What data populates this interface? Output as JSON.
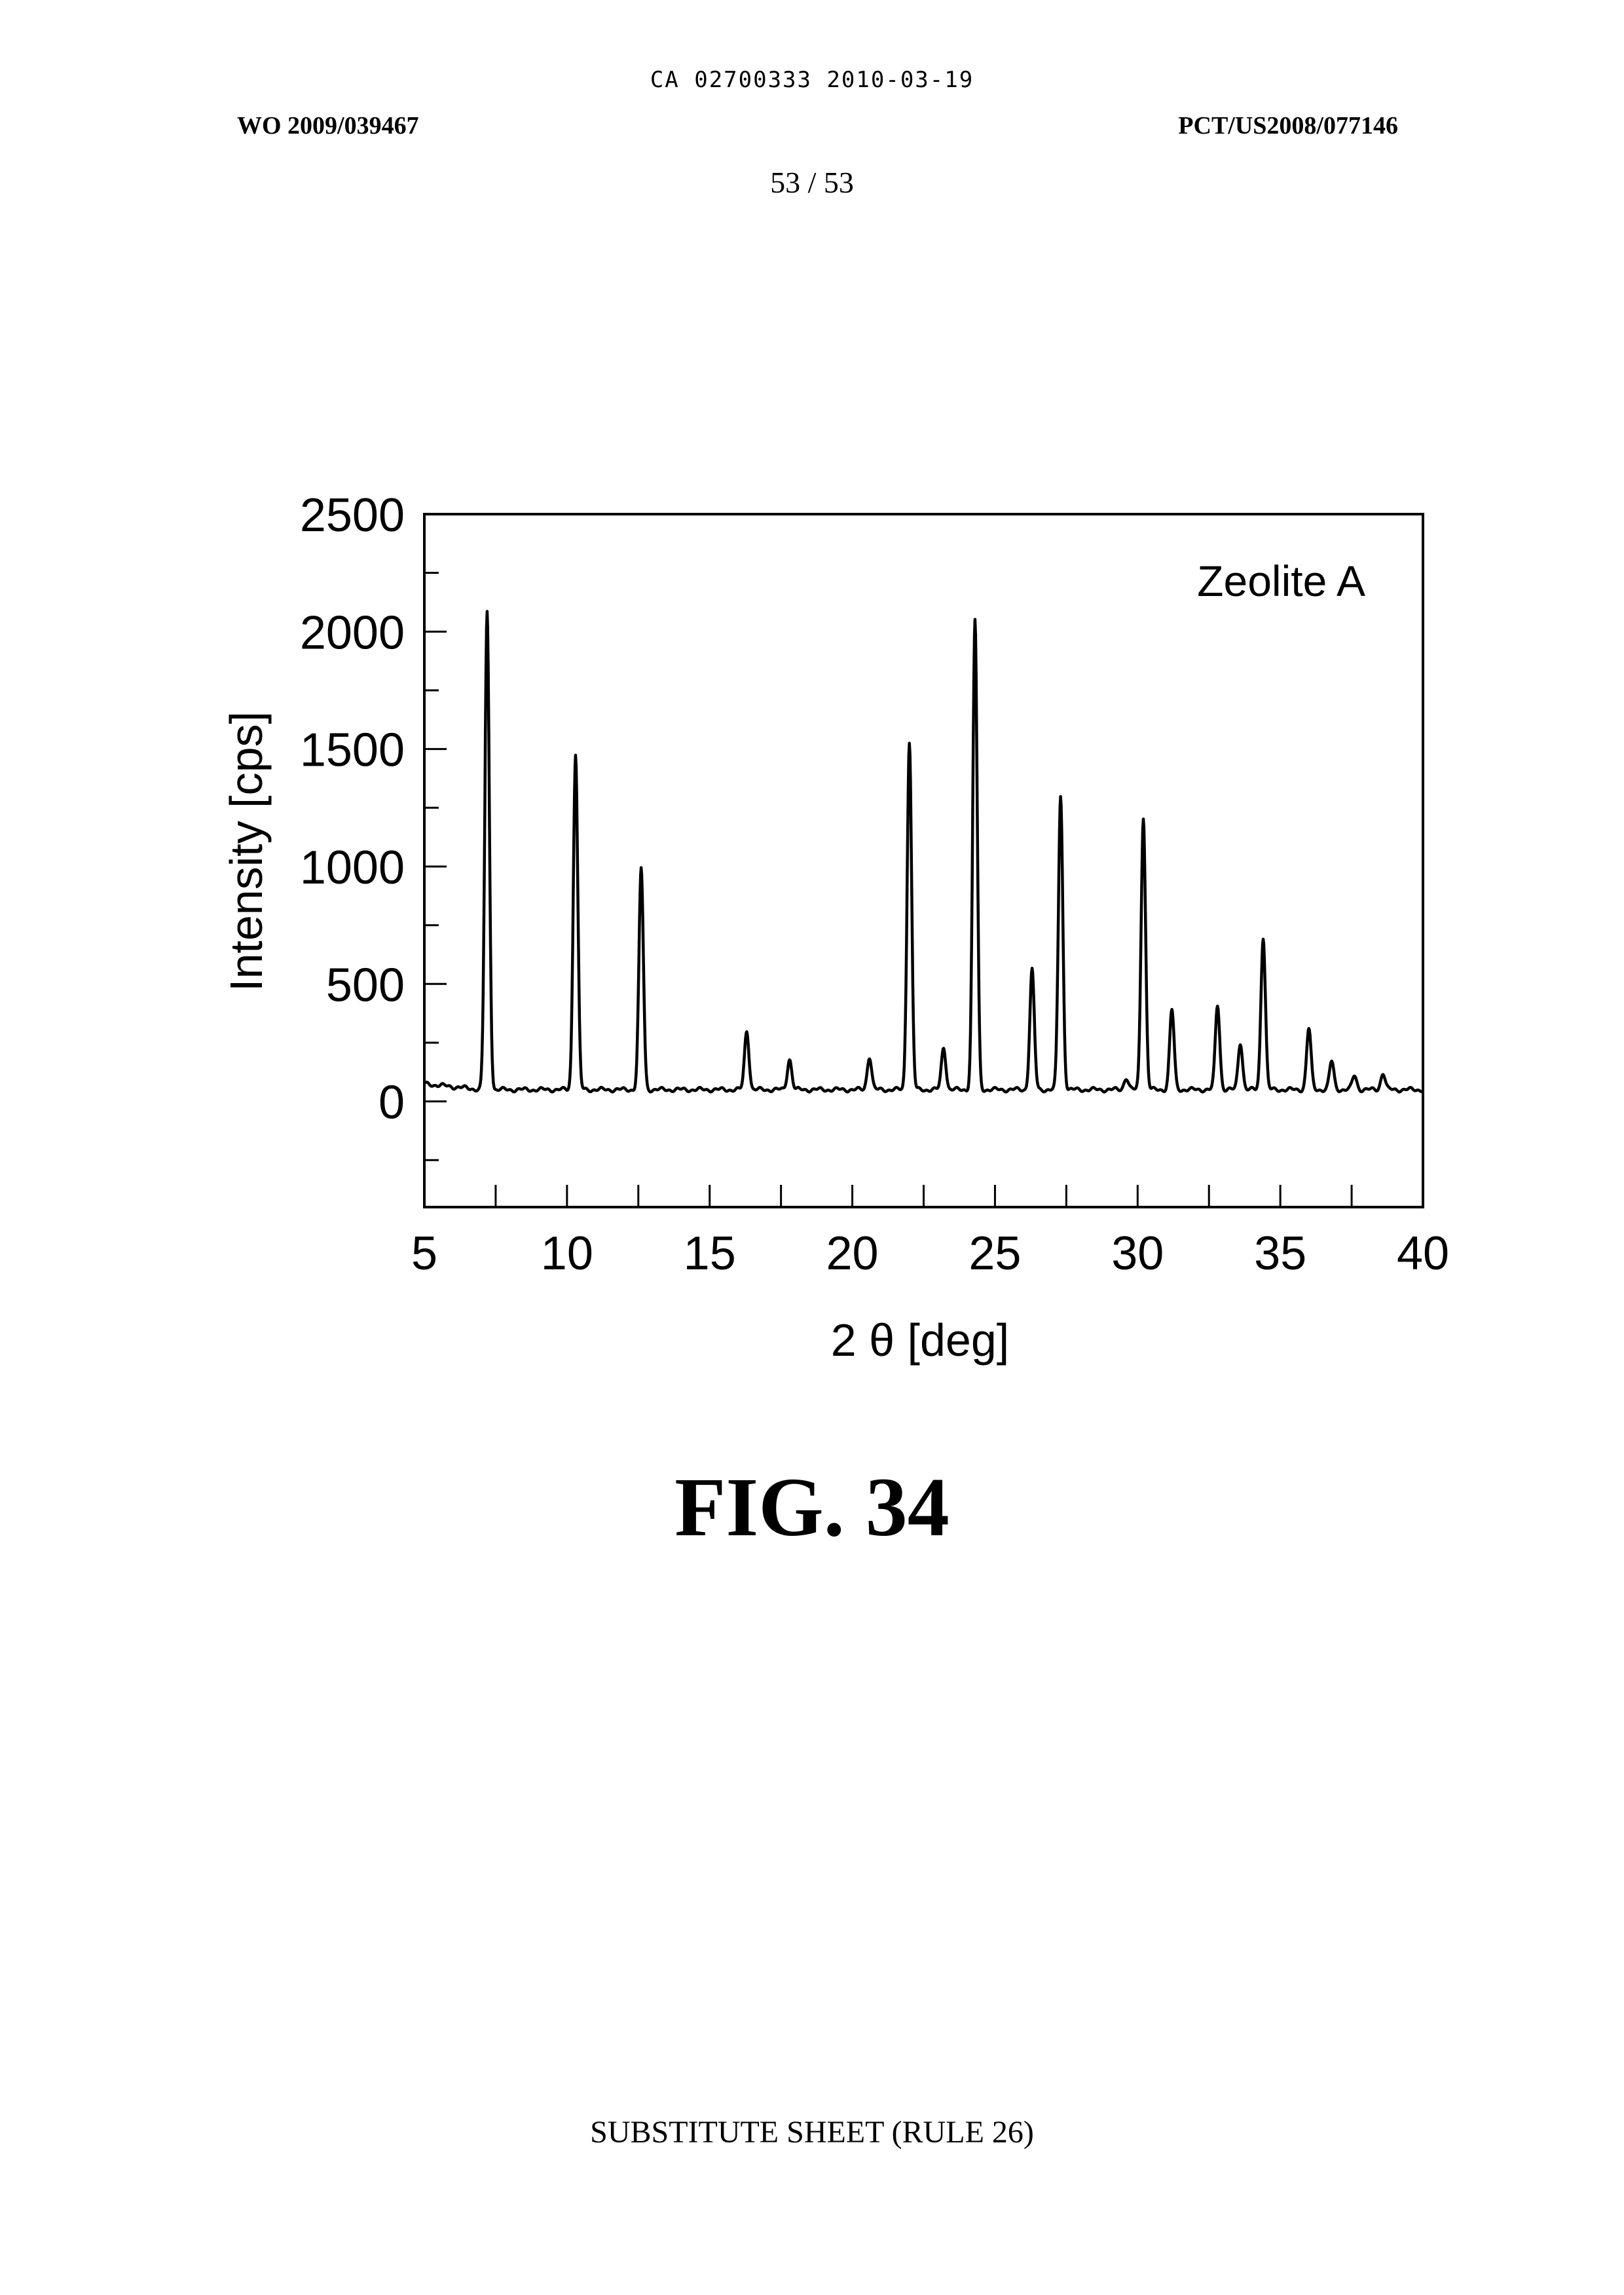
{
  "header": {
    "ca_line": "CA 02700333 2010-03-19",
    "wo_number": "WO 2009/039467",
    "pct_number": "PCT/US2008/077146",
    "page_number": "53 / 53"
  },
  "figure": {
    "caption": "FIG. 34"
  },
  "footer": {
    "text": "SUBSTITUTE SHEET (RULE 26)"
  },
  "chart_data": {
    "type": "line",
    "title": "",
    "annotation": "Zeolite A",
    "xlabel": "2 θ [deg]",
    "ylabel": "Intensity [cps]",
    "xlim": [
      5,
      40
    ],
    "ylim": [
      -450,
      2500
    ],
    "xticks": [
      5,
      10,
      15,
      20,
      25,
      30,
      35,
      40
    ],
    "xtick_labels": [
      "5",
      "10",
      "15",
      "20",
      "25",
      "30",
      "35",
      "40"
    ],
    "yticks": [
      0,
      500,
      1000,
      1500,
      2000,
      2500
    ],
    "ytick_labels": [
      "0",
      "500",
      "1000",
      "1500",
      "2000",
      "2500"
    ],
    "grid": false,
    "color": "#000000",
    "background": 50,
    "peaks": [
      {
        "x": 7.2,
        "y": 2080
      },
      {
        "x": 10.3,
        "y": 1480
      },
      {
        "x": 12.6,
        "y": 990
      },
      {
        "x": 16.3,
        "y": 300
      },
      {
        "x": 17.8,
        "y": 180
      },
      {
        "x": 20.6,
        "y": 190
      },
      {
        "x": 22.0,
        "y": 1530
      },
      {
        "x": 23.2,
        "y": 230
      },
      {
        "x": 24.3,
        "y": 2050
      },
      {
        "x": 26.3,
        "y": 560
      },
      {
        "x": 27.3,
        "y": 1300
      },
      {
        "x": 29.6,
        "y": 100
      },
      {
        "x": 30.2,
        "y": 1210
      },
      {
        "x": 31.2,
        "y": 390
      },
      {
        "x": 32.8,
        "y": 410
      },
      {
        "x": 33.6,
        "y": 250
      },
      {
        "x": 34.4,
        "y": 700
      },
      {
        "x": 36.0,
        "y": 310
      },
      {
        "x": 36.8,
        "y": 170
      },
      {
        "x": 37.6,
        "y": 110
      },
      {
        "x": 38.6,
        "y": 120
      }
    ]
  }
}
